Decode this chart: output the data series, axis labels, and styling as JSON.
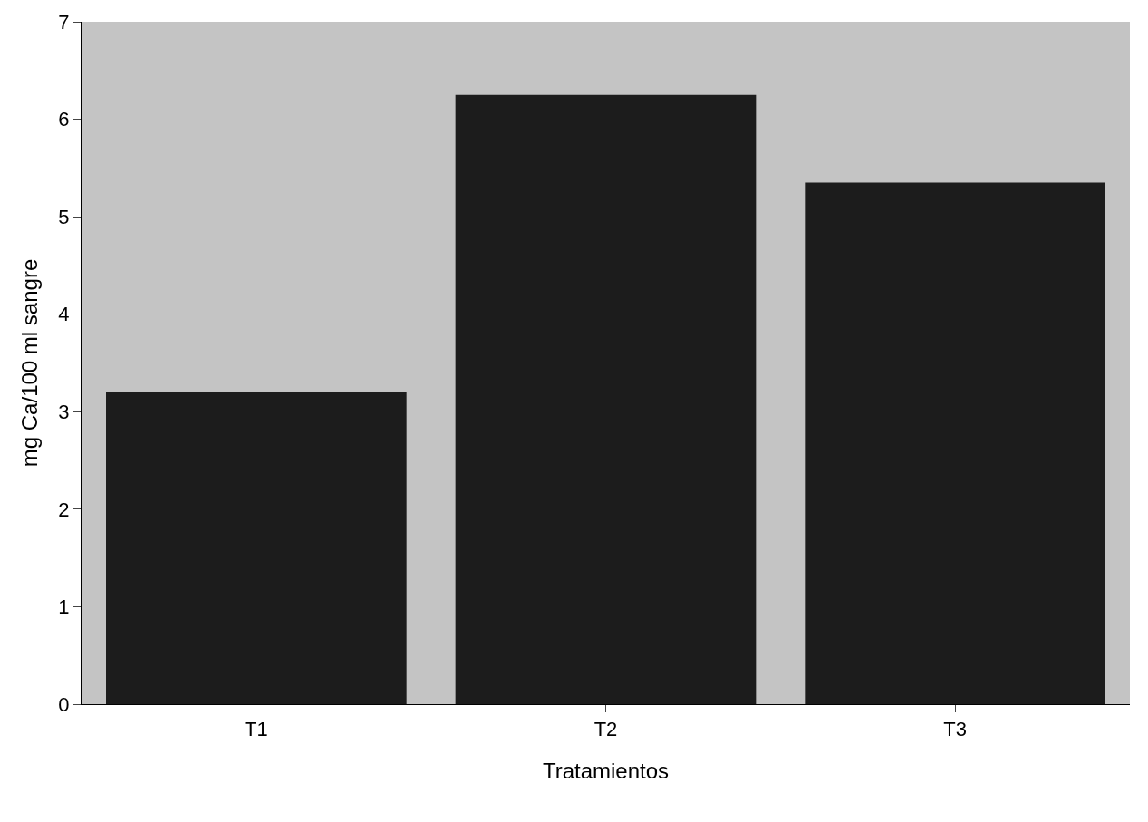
{
  "chart_data": {
    "type": "bar",
    "xlabel": "Tratamientos",
    "ylabel": "mg Ca/100 ml sangre",
    "categories": [
      "T1",
      "T2",
      "T3"
    ],
    "values": [
      3.2,
      6.25,
      5.35
    ],
    "color": "#1c1c1c",
    "ylim": [
      0,
      7
    ],
    "yticks": [
      0,
      1,
      2,
      3,
      4,
      5,
      6,
      7
    ],
    "grid": false
  }
}
